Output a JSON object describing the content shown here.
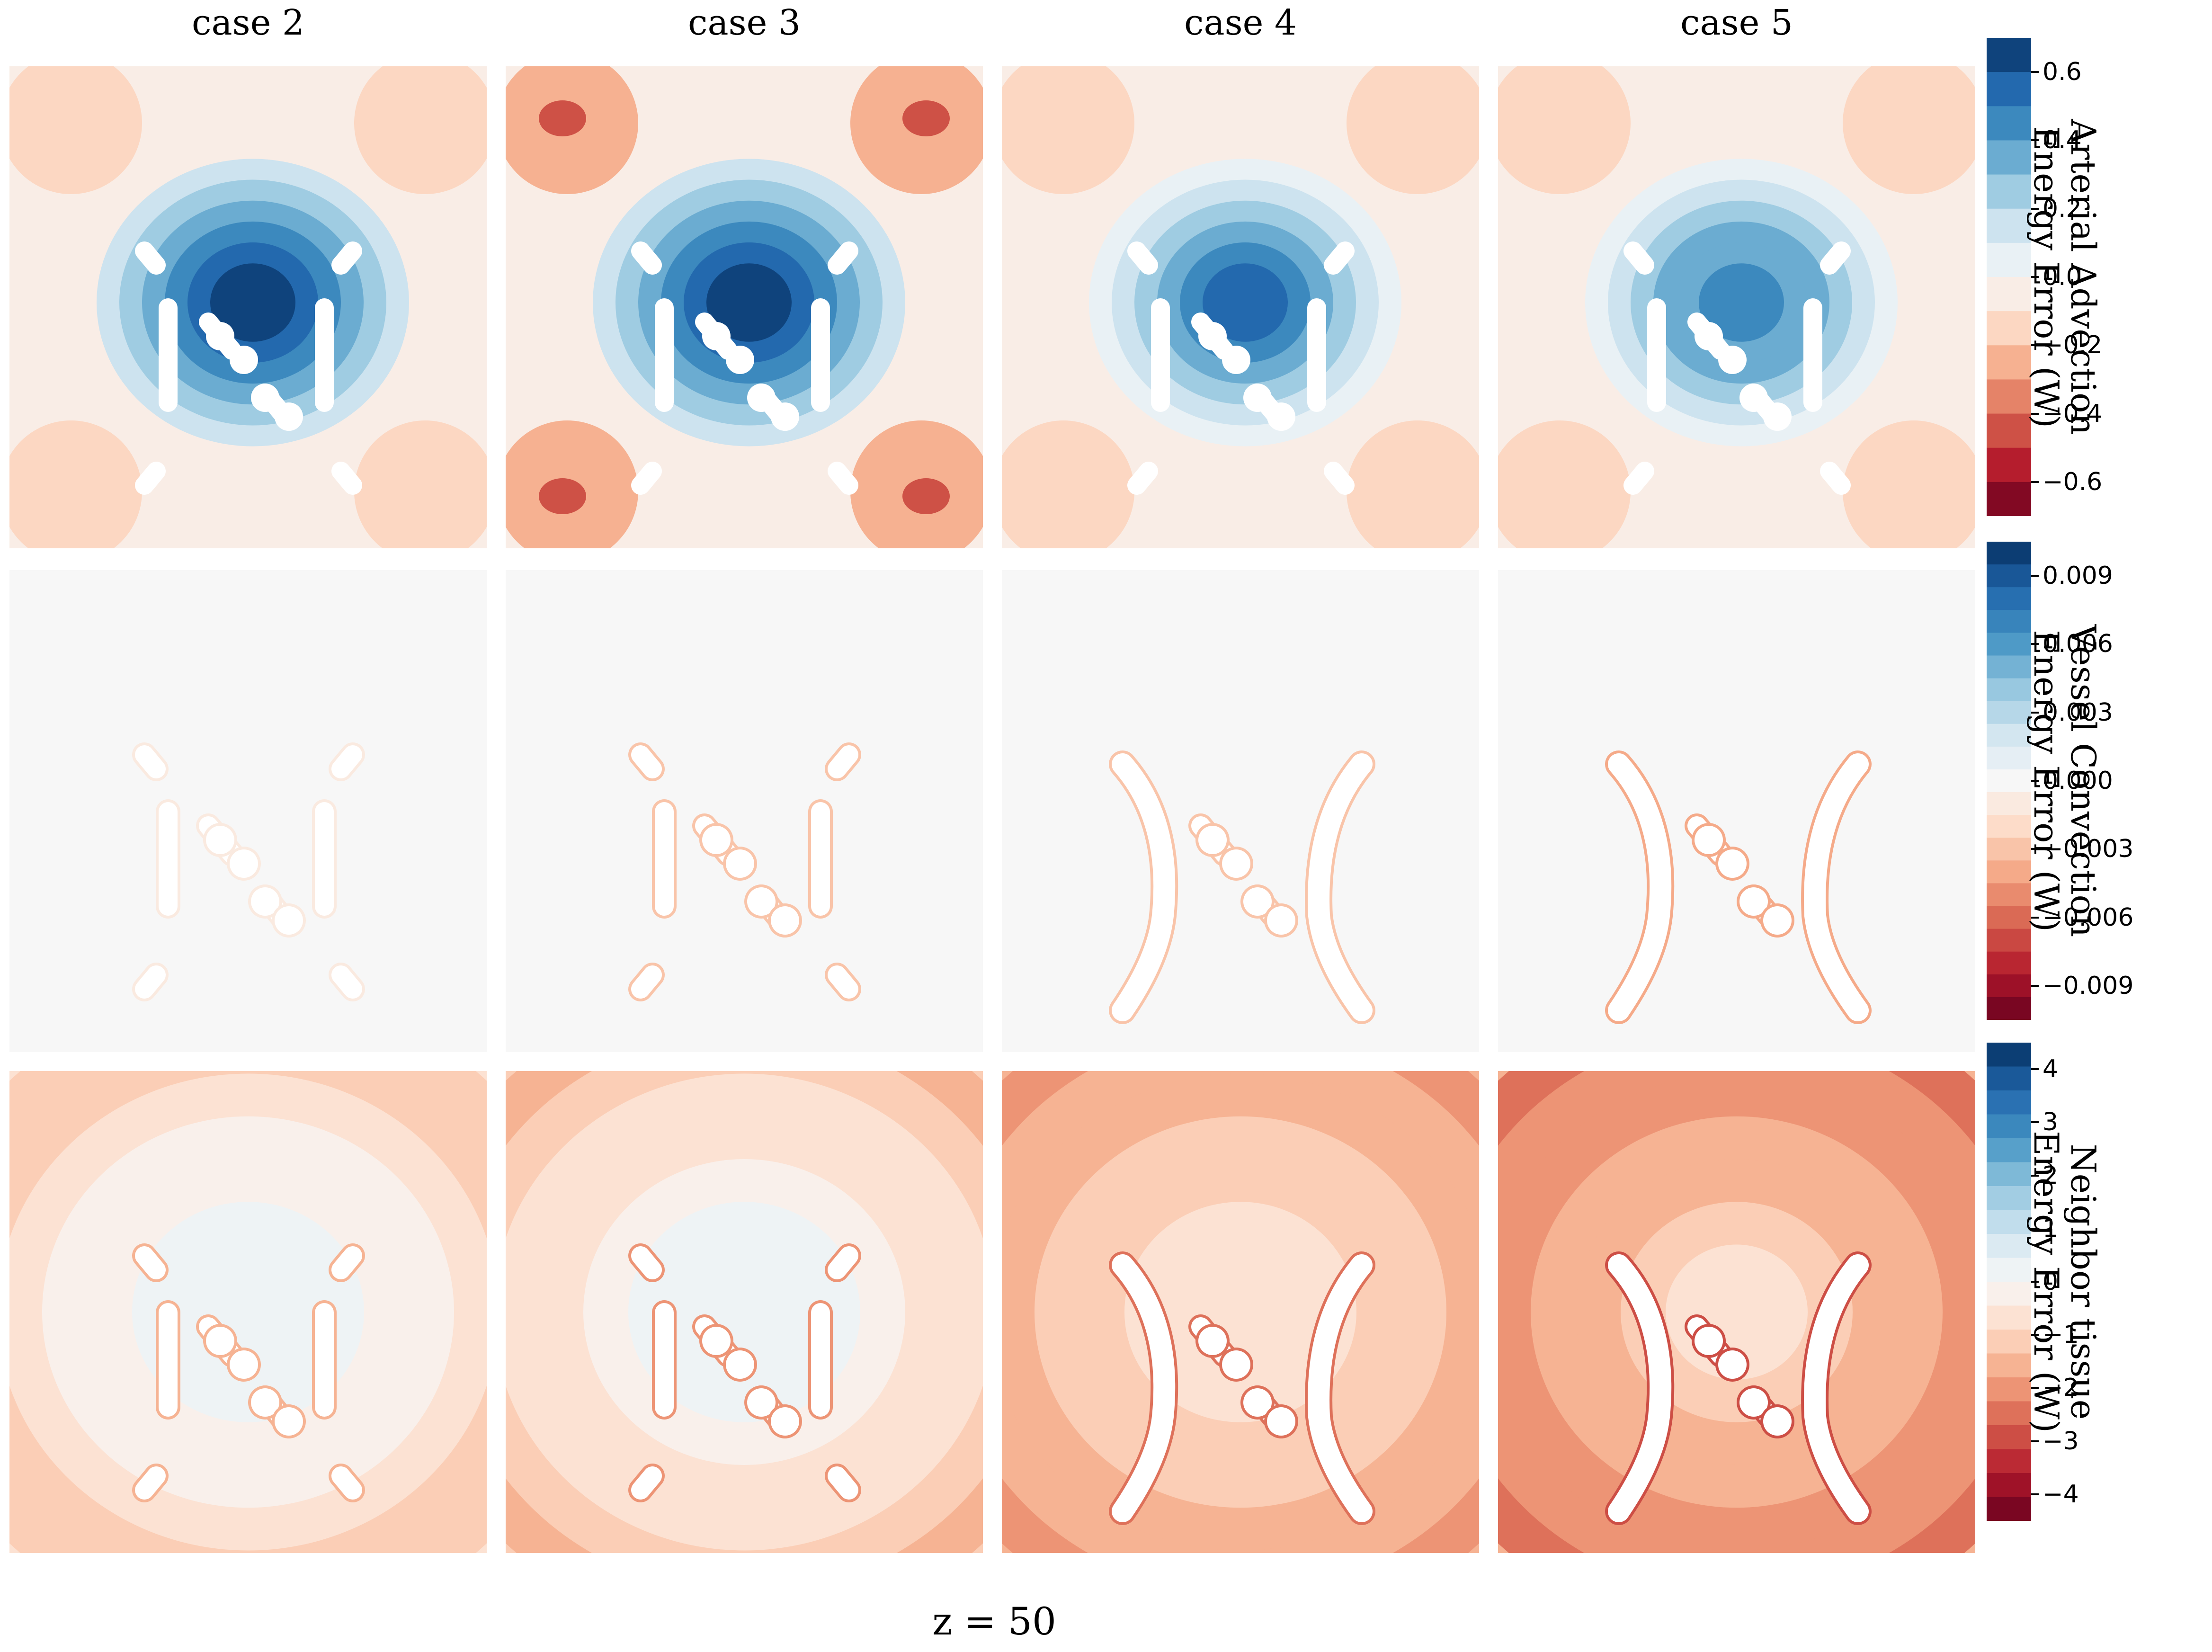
{
  "figure": {
    "columns": [
      "case 2",
      "case 3",
      "case 4",
      "case 5"
    ],
    "footer": "z = 50"
  },
  "colors": {
    "colormap": "RdBu",
    "vessel_mask": "#ffffff",
    "panel_edge": "#f08080"
  },
  "chart_data": [
    {
      "type": "heatmap",
      "row": "Arterial Advection Energy Error",
      "colorbar_label": [
        "Arterial Advection",
        "Energy Error (W)"
      ],
      "vmin": -0.7,
      "vmax": 0.7,
      "levels": 14,
      "colorbar_ticks": [
        0.6,
        0.4,
        0.2,
        0.0,
        -0.2,
        -0.4,
        -0.6
      ],
      "colorbar_tick_labels": [
        "0.6",
        "0.4",
        "0.2",
        "0.0",
        "−0.2",
        "−0.4",
        "−0.6"
      ],
      "panels": [
        {
          "case": "case 2",
          "background": -0.05,
          "center_peak": 0.62,
          "corner_value": -0.15
        },
        {
          "case": "case 3",
          "background": -0.1,
          "center_peak": 0.68,
          "corner_value": -0.28
        },
        {
          "case": "case 4",
          "background": -0.05,
          "center_peak": 0.55,
          "corner_value": -0.15
        },
        {
          "case": "case 5",
          "background": -0.05,
          "center_peak": 0.45,
          "corner_value": -0.15
        }
      ]
    },
    {
      "type": "heatmap",
      "row": "Vessel Convection Energy Error",
      "colorbar_label": [
        "Vessel Convection",
        "Energy Error (W)"
      ],
      "vmin": -0.0105,
      "vmax": 0.0105,
      "levels": 21,
      "colorbar_ticks": [
        0.009,
        0.006,
        0.003,
        0.0,
        -0.003,
        -0.006,
        -0.009
      ],
      "colorbar_tick_labels": [
        "0.009",
        "0.006",
        "0.003",
        "0.000",
        "−0.003",
        "−0.006",
        "−0.009"
      ],
      "panels": [
        {
          "case": "case 2",
          "background": 0.0003,
          "edge_value": -0.001
        },
        {
          "case": "case 3",
          "background": 0.0003,
          "edge_value": -0.003
        },
        {
          "case": "case 4",
          "background": 0.0003,
          "edge_value": -0.003
        },
        {
          "case": "case 5",
          "background": 0.0003,
          "edge_value": -0.004
        }
      ]
    },
    {
      "type": "heatmap",
      "row": "Neighbor tissue Energy Error",
      "colorbar_label": [
        "Neighbor tissue",
        "Energy Error (W)"
      ],
      "vmin": -4.5,
      "vmax": 4.5,
      "levels": 20,
      "colorbar_ticks": [
        4,
        3,
        2,
        1,
        0,
        -1,
        -2,
        -3,
        -4
      ],
      "colorbar_tick_labels": [
        "4",
        "3",
        "2",
        "1",
        "0",
        "−1",
        "−2",
        "−3",
        "−4"
      ],
      "panels": [
        {
          "case": "case 2",
          "background": -0.6,
          "center_value": 0.3,
          "edge_value": -1.2
        },
        {
          "case": "case 3",
          "background": -1.0,
          "center_value": 0.4,
          "edge_value": -1.5
        },
        {
          "case": "case 4",
          "background": -1.4,
          "center_value": -0.6,
          "edge_value": -2.0
        },
        {
          "case": "case 5",
          "background": -1.8,
          "center_value": -0.9,
          "edge_value": -2.3
        }
      ]
    }
  ]
}
